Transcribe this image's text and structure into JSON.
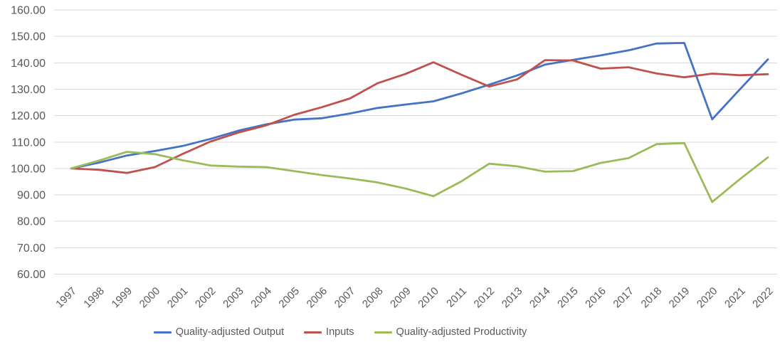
{
  "styles": {
    "background": "#FFFFFF",
    "text_color": "#595959",
    "grid_color": "#D9D9D9"
  },
  "chart_data": {
    "type": "line",
    "title": "",
    "xlabel": "",
    "ylabel": "",
    "categories": [
      "1997",
      "1998",
      "1999",
      "2000",
      "2001",
      "2002",
      "2003",
      "2004",
      "2005",
      "2006",
      "2007",
      "2008",
      "2009",
      "2010",
      "2011",
      "2012",
      "2013",
      "2014",
      "2015",
      "2016",
      "2017",
      "2018",
      "2019",
      "2020",
      "2021",
      "2022"
    ],
    "series": [
      {
        "name": "Quality-adjusted Output",
        "color": "#4472C4",
        "values": [
          100.0,
          102.2,
          104.9,
          106.6,
          108.5,
          111.2,
          114.3,
          116.7,
          118.5,
          119.0,
          120.8,
          122.9,
          124.2,
          125.4,
          128.4,
          131.7,
          135.2,
          139.3,
          141.1,
          142.8,
          144.7,
          147.3,
          147.5,
          118.6,
          130.0,
          141.3
        ]
      },
      {
        "name": "Inputs",
        "color": "#C0504D",
        "values": [
          100.0,
          99.5,
          98.3,
          100.5,
          105.5,
          110.2,
          113.6,
          116.3,
          120.3,
          123.2,
          126.5,
          132.3,
          135.8,
          140.2,
          135.5,
          131.0,
          133.7,
          141.0,
          140.9,
          137.8,
          138.3,
          136.0,
          134.5,
          135.9,
          135.3,
          135.7
        ]
      },
      {
        "name": "Quality-adjusted Productivity",
        "color": "#9BBB59",
        "values": [
          100.0,
          103.0,
          106.3,
          105.4,
          103.1,
          101.1,
          100.7,
          100.5,
          99.0,
          97.5,
          96.2,
          94.7,
          92.4,
          89.5,
          95.1,
          101.8,
          100.8,
          98.8,
          99.0,
          102.1,
          103.9,
          109.2,
          109.6,
          87.3,
          96.0,
          104.2
        ]
      }
    ],
    "ylim": [
      60,
      160
    ],
    "ytick_step": 10,
    "ytick_decimals": 2,
    "x_label_rotation": 45,
    "grid": true,
    "legend_position": "bottom"
  }
}
